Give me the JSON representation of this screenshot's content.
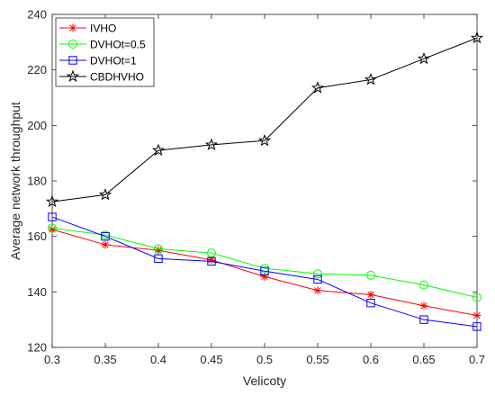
{
  "chart_data": {
    "type": "line",
    "xlabel": "Velicoty",
    "ylabel": "Average network throughput",
    "xlim": [
      0.3,
      0.7
    ],
    "ylim": [
      120,
      240
    ],
    "xticks": [
      "0.3",
      "0.35",
      "0.4",
      "0.45",
      "0.5",
      "0.55",
      "0.6",
      "0.65",
      "0.7"
    ],
    "yticks": [
      "120",
      "140",
      "160",
      "180",
      "200",
      "220",
      "240"
    ],
    "x": [
      0.3,
      0.35,
      0.4,
      0.45,
      0.5,
      0.55,
      0.6,
      0.65,
      0.7
    ],
    "legend_position": "top-left",
    "grid": false,
    "series": [
      {
        "name": "IVHO",
        "color": "#ff0000",
        "marker": "asterisk",
        "values": [
          162.5,
          157,
          155,
          151.5,
          145.5,
          140.5,
          139,
          135,
          131.5
        ]
      },
      {
        "name": "DVHOt=0.5",
        "color": "#00ff00",
        "marker": "circle",
        "values": [
          163,
          160.5,
          155.5,
          154,
          148.5,
          146.5,
          146,
          142.5,
          138
        ]
      },
      {
        "name": "DVHOt=1",
        "color": "#0000ff",
        "marker": "square",
        "values": [
          167,
          160,
          152,
          151,
          147.5,
          144.5,
          136,
          130,
          127.5
        ]
      },
      {
        "name": "CBDHVHO",
        "color": "#000000",
        "marker": "star",
        "values": [
          172.5,
          175,
          191,
          193,
          194.5,
          213.5,
          216.5,
          224,
          231.5
        ]
      }
    ]
  }
}
